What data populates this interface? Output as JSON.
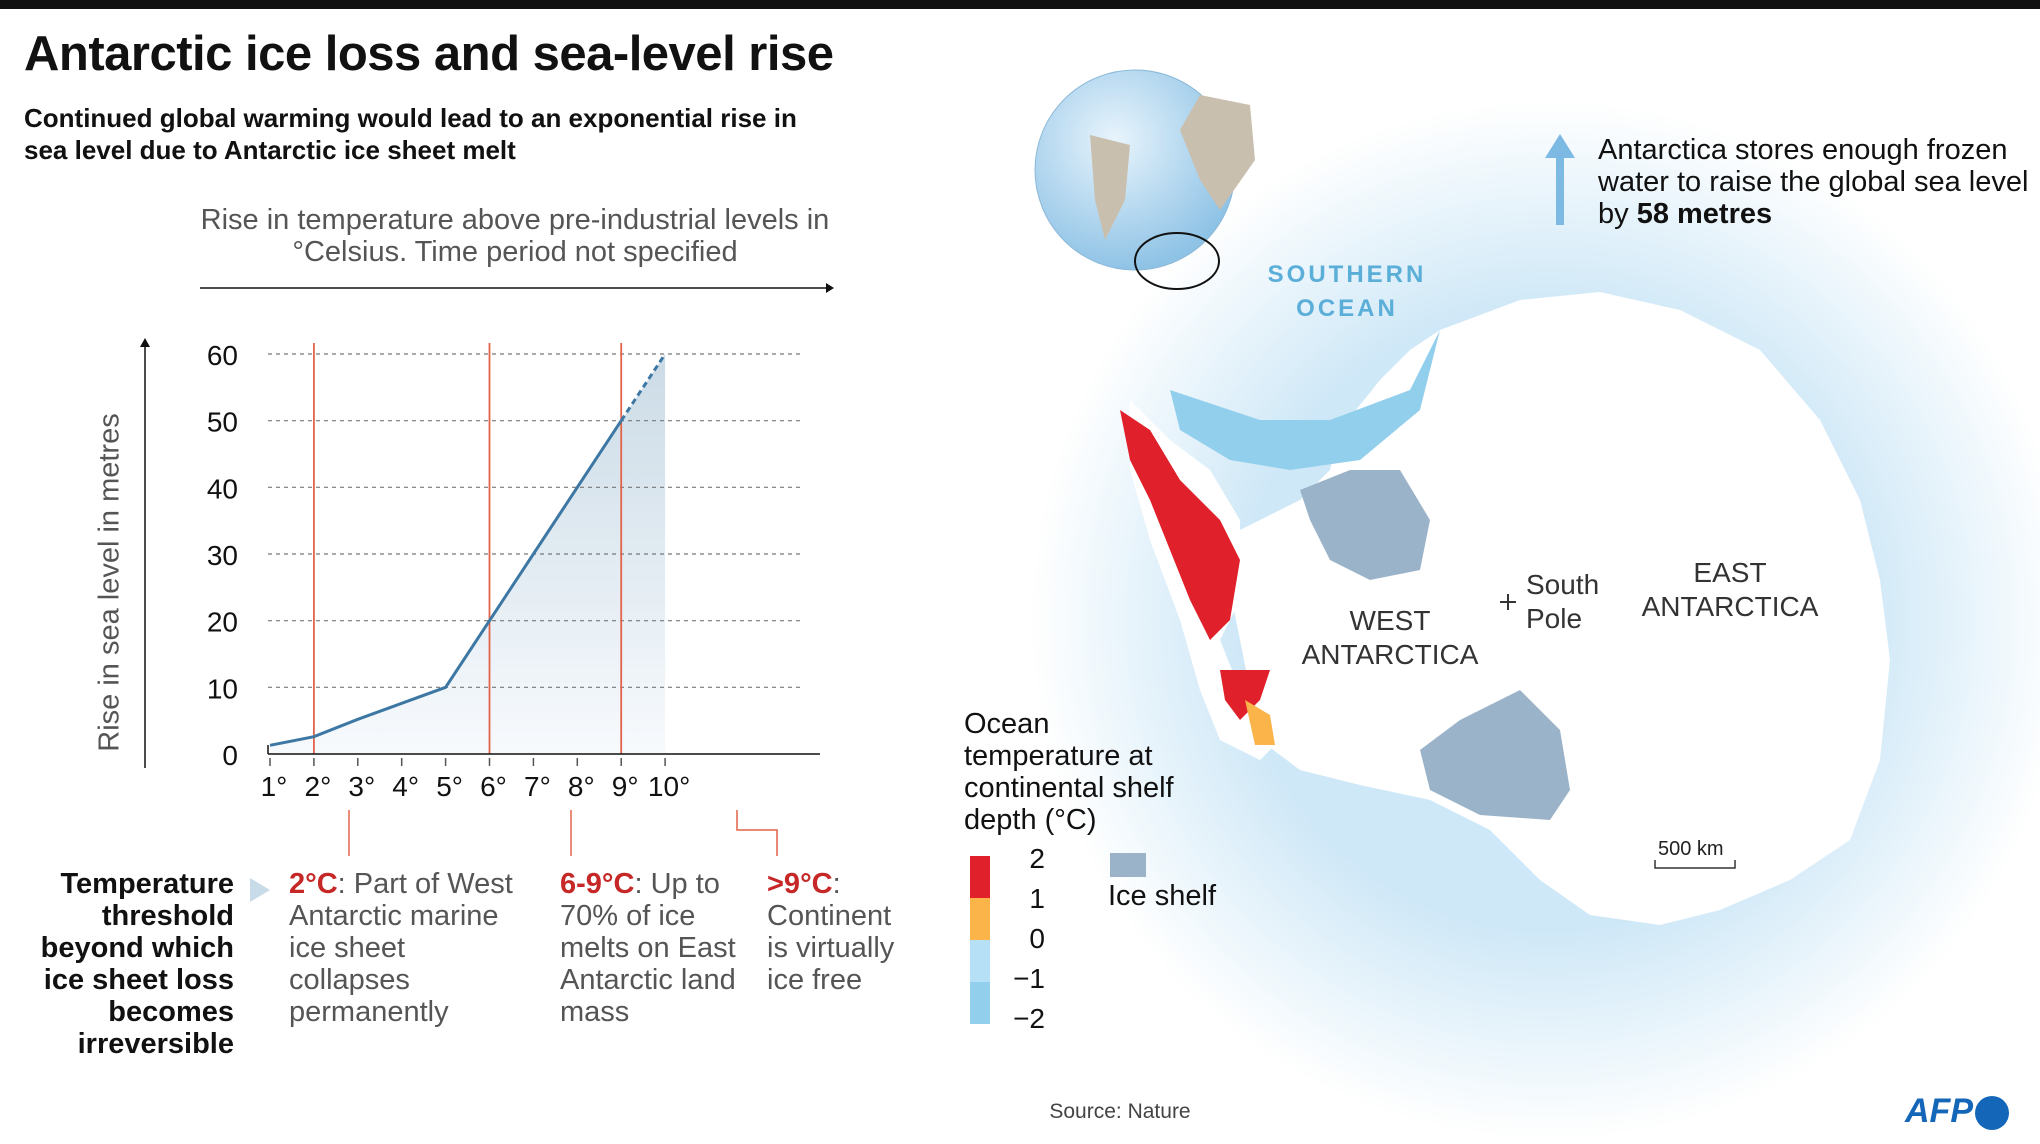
{
  "header": {
    "title": "Antarctic ice loss and sea-level rise",
    "subtitle": "Continued global warming would lead to an exponential rise in sea level due to Antarctic ice sheet melt"
  },
  "chart_data": {
    "type": "line",
    "title": "Rise in temperature above pre-industrial levels in °Celsius. Time period not specified",
    "xlabel": "Rise in temperature above pre-industrial levels in °Celsius. Time period not specified",
    "ylabel": "Rise in sea level in metres",
    "x": [
      1,
      2,
      3,
      4,
      5,
      6,
      7,
      8,
      9,
      10
    ],
    "x_tick_labels": [
      "1°",
      "2°",
      "3°",
      "4°",
      "5°",
      "6°",
      "7°",
      "8°",
      "9°",
      "10°"
    ],
    "y_ticks": [
      0,
      10,
      20,
      30,
      40,
      50,
      60
    ],
    "series": [
      {
        "name": "Sea-level rise",
        "values": [
          1.3,
          2.6,
          5.2,
          7.6,
          10,
          20,
          30,
          40,
          50,
          60
        ],
        "dashed_from_x": 9
      }
    ],
    "xlim": [
      0.5,
      10.5
    ],
    "ylim": [
      0,
      60
    ],
    "grid": "horizontal dashed",
    "threshold_lines": [
      2,
      6,
      9
    ],
    "colors": {
      "line": "#3d77a3",
      "threshold": "#e2634a",
      "fill": "#cfdde8"
    }
  },
  "annotations": {
    "threshold_label": "Temperature threshold beyond which ice sheet loss becomes irreversible",
    "notes": [
      {
        "key": "2°C",
        "text": ": Part of West Antarctic marine ice sheet collapses permanently"
      },
      {
        "key": "6-9°C",
        "text": ": Up to 70% of ice melts on East Antarctic land mass"
      },
      {
        "key": ">9°C",
        "text": ": Continent is virtually ice free"
      }
    ]
  },
  "map": {
    "ocean_label": "SOUTHERN OCEAN",
    "west": "WEST ANTARCTICA",
    "east": "EAST ANTARCTICA",
    "pole": "South Pole",
    "stores_text": "Antarctica stores enough frozen water to raise the global sea level by ",
    "stores_value": "58 metres",
    "scale": "500 km"
  },
  "legend": {
    "title": "Ocean temperature at continental shelf depth (°C)",
    "ticks": [
      "2",
      "1",
      "0",
      "−1",
      "−2"
    ],
    "colors": [
      "#e0202a",
      "#fbb44a",
      "#b5e0f5",
      "#92cfec"
    ],
    "ice_shelf": "Ice shelf",
    "ice_shelf_color": "#9bb3c9"
  },
  "footer": {
    "source": "Source: Nature",
    "logo": "AFP"
  }
}
